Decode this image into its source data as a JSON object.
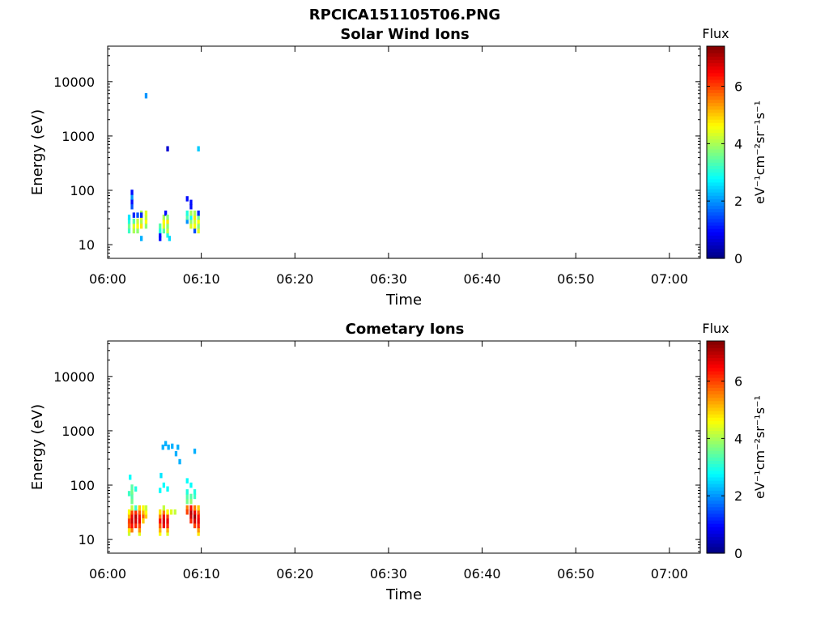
{
  "figure_title": "RPCICA151105T06.PNG",
  "colors": {
    "colormap": "jet",
    "axes": "#000000",
    "background": "#ffffff"
  },
  "chart_data": [
    {
      "type": "heatmap",
      "title": "Solar Wind Ions",
      "xlabel": "Time",
      "ylabel": "Energy (eV)",
      "x_ticks": [
        "06:00",
        "06:10",
        "06:20",
        "06:30",
        "06:40",
        "06:50",
        "07:00"
      ],
      "y_ticks": [
        "10",
        "100",
        "1000",
        "10000"
      ],
      "y_scale": "log",
      "xlim_minutes": [
        0,
        63.3
      ],
      "ylim": [
        5.6,
        45000
      ],
      "colorbar": {
        "title": "Flux",
        "label": "eV⁻¹cm⁻²sr⁻¹s⁻¹",
        "ticks": [
          "0",
          "2",
          "4",
          "6"
        ],
        "range": [
          0,
          7.4
        ]
      },
      "grid": false,
      "cells": [
        {
          "t": 2.3,
          "e": 18,
          "v": 3.2
        },
        {
          "t": 2.3,
          "e": 22,
          "v": 3.6
        },
        {
          "t": 2.3,
          "e": 27,
          "v": 3.0
        },
        {
          "t": 2.3,
          "e": 32,
          "v": 2.6
        },
        {
          "t": 2.6,
          "e": 50,
          "v": 1.5
        },
        {
          "t": 2.6,
          "e": 62,
          "v": 1.0
        },
        {
          "t": 2.6,
          "e": 75,
          "v": 2.0
        },
        {
          "t": 2.6,
          "e": 92,
          "v": 1.0
        },
        {
          "t": 2.8,
          "e": 18,
          "v": 4.0
        },
        {
          "t": 2.8,
          "e": 22,
          "v": 4.4
        },
        {
          "t": 2.8,
          "e": 27,
          "v": 3.4
        },
        {
          "t": 2.8,
          "e": 35,
          "v": 1.2
        },
        {
          "t": 3.2,
          "e": 18,
          "v": 3.8
        },
        {
          "t": 3.2,
          "e": 22,
          "v": 4.6
        },
        {
          "t": 3.2,
          "e": 27,
          "v": 4.2
        },
        {
          "t": 3.2,
          "e": 35,
          "v": 1.5
        },
        {
          "t": 3.6,
          "e": 22,
          "v": 4.8
        },
        {
          "t": 3.6,
          "e": 27,
          "v": 4.0
        },
        {
          "t": 3.6,
          "e": 32,
          "v": 4.4
        },
        {
          "t": 3.6,
          "e": 38,
          "v": 4.0
        },
        {
          "t": 3.6,
          "e": 13,
          "v": 2.2
        },
        {
          "t": 3.6,
          "e": 35,
          "v": 1.2
        },
        {
          "t": 4.1,
          "e": 22,
          "v": 3.8
        },
        {
          "t": 4.1,
          "e": 27,
          "v": 4.6
        },
        {
          "t": 4.1,
          "e": 32,
          "v": 4.2
        },
        {
          "t": 4.1,
          "e": 38,
          "v": 4.4
        },
        {
          "t": 4.1,
          "e": 5500,
          "v": 2.0
        },
        {
          "t": 5.6,
          "e": 13,
          "v": 1.0
        },
        {
          "t": 5.6,
          "e": 15,
          "v": 1.0
        },
        {
          "t": 5.6,
          "e": 18,
          "v": 3.0
        },
        {
          "t": 5.6,
          "e": 22,
          "v": 3.4
        },
        {
          "t": 6.0,
          "e": 18,
          "v": 3.4
        },
        {
          "t": 6.0,
          "e": 22,
          "v": 4.4
        },
        {
          "t": 6.0,
          "e": 27,
          "v": 4.6
        },
        {
          "t": 6.0,
          "e": 32,
          "v": 4.0
        },
        {
          "t": 6.2,
          "e": 38,
          "v": 1.0
        },
        {
          "t": 6.4,
          "e": 15,
          "v": 3.0
        },
        {
          "t": 6.4,
          "e": 18,
          "v": 4.2
        },
        {
          "t": 6.4,
          "e": 22,
          "v": 3.8
        },
        {
          "t": 6.4,
          "e": 27,
          "v": 4.8
        },
        {
          "t": 6.4,
          "e": 32,
          "v": 3.8
        },
        {
          "t": 6.4,
          "e": 580,
          "v": 0.6
        },
        {
          "t": 6.6,
          "e": 13,
          "v": 2.5
        },
        {
          "t": 8.5,
          "e": 27,
          "v": 2.0
        },
        {
          "t": 8.5,
          "e": 32,
          "v": 3.4
        },
        {
          "t": 8.5,
          "e": 38,
          "v": 3.0
        },
        {
          "t": 8.5,
          "e": 70,
          "v": 1.0
        },
        {
          "t": 8.9,
          "e": 22,
          "v": 4.4
        },
        {
          "t": 8.9,
          "e": 27,
          "v": 3.8
        },
        {
          "t": 8.9,
          "e": 32,
          "v": 2.8
        },
        {
          "t": 8.9,
          "e": 38,
          "v": 4.0
        },
        {
          "t": 8.9,
          "e": 50,
          "v": 1.0
        },
        {
          "t": 8.9,
          "e": 60,
          "v": 1.0
        },
        {
          "t": 9.3,
          "e": 18,
          "v": 1.5
        },
        {
          "t": 9.3,
          "e": 22,
          "v": 4.6
        },
        {
          "t": 9.3,
          "e": 27,
          "v": 4.2
        },
        {
          "t": 9.3,
          "e": 32,
          "v": 4.8
        },
        {
          "t": 9.3,
          "e": 38,
          "v": 4.0
        },
        {
          "t": 9.7,
          "e": 18,
          "v": 4.4
        },
        {
          "t": 9.7,
          "e": 22,
          "v": 3.8
        },
        {
          "t": 9.7,
          "e": 27,
          "v": 4.6
        },
        {
          "t": 9.7,
          "e": 32,
          "v": 3.6
        },
        {
          "t": 9.7,
          "e": 38,
          "v": 1.2
        },
        {
          "t": 9.7,
          "e": 580,
          "v": 2.4
        }
      ]
    },
    {
      "type": "heatmap",
      "title": "Cometary Ions",
      "xlabel": "Time",
      "ylabel": "Energy (eV)",
      "x_ticks": [
        "06:00",
        "06:10",
        "06:20",
        "06:30",
        "06:40",
        "06:50",
        "07:00"
      ],
      "y_ticks": [
        "10",
        "100",
        "1000",
        "10000"
      ],
      "y_scale": "log",
      "xlim_minutes": [
        0,
        63.3
      ],
      "ylim": [
        5.6,
        45000
      ],
      "colorbar": {
        "title": "Flux",
        "label": "eV⁻¹cm⁻²sr⁻¹s⁻¹",
        "ticks": [
          "0",
          "2",
          "4",
          "6"
        ],
        "range": [
          0,
          7.4
        ]
      },
      "grid": false,
      "cells": [
        {
          "t": 2.3,
          "e": 13,
          "v": 4.2
        },
        {
          "t": 2.3,
          "e": 15,
          "v": 4.8
        },
        {
          "t": 2.3,
          "e": 18,
          "v": 5.8
        },
        {
          "t": 2.3,
          "e": 22,
          "v": 6.0
        },
        {
          "t": 2.3,
          "e": 27,
          "v": 5.2
        },
        {
          "t": 2.3,
          "e": 32,
          "v": 4.6
        },
        {
          "t": 2.3,
          "e": 70,
          "v": 3.2
        },
        {
          "t": 2.4,
          "e": 140,
          "v": 2.8
        },
        {
          "t": 2.6,
          "e": 15,
          "v": 5.6
        },
        {
          "t": 2.6,
          "e": 18,
          "v": 6.4
        },
        {
          "t": 2.6,
          "e": 22,
          "v": 6.8
        },
        {
          "t": 2.6,
          "e": 27,
          "v": 6.6
        },
        {
          "t": 2.6,
          "e": 32,
          "v": 6.0
        },
        {
          "t": 2.6,
          "e": 38,
          "v": 4.2
        },
        {
          "t": 2.6,
          "e": 50,
          "v": 3.6
        },
        {
          "t": 2.6,
          "e": 62,
          "v": 3.4
        },
        {
          "t": 2.6,
          "e": 75,
          "v": 3.6
        },
        {
          "t": 2.6,
          "e": 92,
          "v": 3.4
        },
        {
          "t": 3.0,
          "e": 18,
          "v": 6.2
        },
        {
          "t": 3.0,
          "e": 22,
          "v": 6.8
        },
        {
          "t": 3.0,
          "e": 27,
          "v": 7.0
        },
        {
          "t": 3.0,
          "e": 32,
          "v": 6.2
        },
        {
          "t": 3.0,
          "e": 38,
          "v": 3.2
        },
        {
          "t": 3.0,
          "e": 85,
          "v": 3.0
        },
        {
          "t": 3.4,
          "e": 13,
          "v": 4.4
        },
        {
          "t": 3.4,
          "e": 15,
          "v": 5.4
        },
        {
          "t": 3.4,
          "e": 18,
          "v": 6.0
        },
        {
          "t": 3.4,
          "e": 22,
          "v": 6.6
        },
        {
          "t": 3.4,
          "e": 27,
          "v": 6.4
        },
        {
          "t": 3.4,
          "e": 32,
          "v": 5.8
        },
        {
          "t": 3.4,
          "e": 38,
          "v": 5.0
        },
        {
          "t": 3.8,
          "e": 27,
          "v": 5.8
        },
        {
          "t": 3.8,
          "e": 32,
          "v": 5.2
        },
        {
          "t": 3.8,
          "e": 38,
          "v": 4.6
        },
        {
          "t": 3.8,
          "e": 22,
          "v": 5.0
        },
        {
          "t": 4.1,
          "e": 27,
          "v": 5.0
        },
        {
          "t": 4.1,
          "e": 32,
          "v": 4.6
        },
        {
          "t": 4.1,
          "e": 38,
          "v": 4.2
        },
        {
          "t": 5.6,
          "e": 13,
          "v": 4.6
        },
        {
          "t": 5.6,
          "e": 15,
          "v": 5.2
        },
        {
          "t": 5.6,
          "e": 18,
          "v": 5.8
        },
        {
          "t": 5.6,
          "e": 22,
          "v": 6.4
        },
        {
          "t": 5.6,
          "e": 27,
          "v": 5.6
        },
        {
          "t": 5.6,
          "e": 32,
          "v": 4.8
        },
        {
          "t": 5.6,
          "e": 80,
          "v": 2.8
        },
        {
          "t": 5.7,
          "e": 150,
          "v": 2.6
        },
        {
          "t": 5.9,
          "e": 500,
          "v": 2.2
        },
        {
          "t": 6.0,
          "e": 18,
          "v": 6.6
        },
        {
          "t": 6.0,
          "e": 22,
          "v": 6.8
        },
        {
          "t": 6.0,
          "e": 27,
          "v": 6.6
        },
        {
          "t": 6.0,
          "e": 32,
          "v": 5.6
        },
        {
          "t": 6.0,
          "e": 38,
          "v": 4.2
        },
        {
          "t": 6.0,
          "e": 100,
          "v": 2.8
        },
        {
          "t": 6.2,
          "e": 580,
          "v": 2.2
        },
        {
          "t": 6.4,
          "e": 13,
          "v": 4.4
        },
        {
          "t": 6.4,
          "e": 15,
          "v": 5.2
        },
        {
          "t": 6.4,
          "e": 18,
          "v": 6.2
        },
        {
          "t": 6.4,
          "e": 22,
          "v": 6.6
        },
        {
          "t": 6.4,
          "e": 27,
          "v": 6.0
        },
        {
          "t": 6.4,
          "e": 32,
          "v": 4.6
        },
        {
          "t": 6.4,
          "e": 85,
          "v": 2.8
        },
        {
          "t": 6.5,
          "e": 500,
          "v": 2.2
        },
        {
          "t": 6.8,
          "e": 32,
          "v": 4.4
        },
        {
          "t": 6.9,
          "e": 520,
          "v": 2.2
        },
        {
          "t": 7.2,
          "e": 32,
          "v": 4.2
        },
        {
          "t": 7.3,
          "e": 380,
          "v": 2.2
        },
        {
          "t": 7.5,
          "e": 500,
          "v": 2.2
        },
        {
          "t": 7.7,
          "e": 270,
          "v": 2.2
        },
        {
          "t": 8.5,
          "e": 38,
          "v": 5.6
        },
        {
          "t": 8.5,
          "e": 32,
          "v": 6.0
        },
        {
          "t": 8.5,
          "e": 50,
          "v": 3.6
        },
        {
          "t": 8.5,
          "e": 62,
          "v": 3.4
        },
        {
          "t": 8.5,
          "e": 75,
          "v": 3.0
        },
        {
          "t": 8.5,
          "e": 120,
          "v": 2.8
        },
        {
          "t": 8.9,
          "e": 22,
          "v": 6.2
        },
        {
          "t": 8.9,
          "e": 27,
          "v": 6.8
        },
        {
          "t": 8.9,
          "e": 32,
          "v": 7.0
        },
        {
          "t": 8.9,
          "e": 38,
          "v": 6.4
        },
        {
          "t": 8.9,
          "e": 50,
          "v": 3.8
        },
        {
          "t": 8.9,
          "e": 62,
          "v": 3.4
        },
        {
          "t": 8.9,
          "e": 100,
          "v": 2.8
        },
        {
          "t": 9.3,
          "e": 18,
          "v": 6.0
        },
        {
          "t": 9.3,
          "e": 22,
          "v": 6.8
        },
        {
          "t": 9.3,
          "e": 27,
          "v": 7.2
        },
        {
          "t": 9.3,
          "e": 32,
          "v": 6.6
        },
        {
          "t": 9.3,
          "e": 38,
          "v": 5.6
        },
        {
          "t": 9.3,
          "e": 62,
          "v": 3.2
        },
        {
          "t": 9.3,
          "e": 75,
          "v": 3.0
        },
        {
          "t": 9.3,
          "e": 420,
          "v": 2.2
        },
        {
          "t": 9.7,
          "e": 13,
          "v": 4.8
        },
        {
          "t": 9.7,
          "e": 15,
          "v": 5.4
        },
        {
          "t": 9.7,
          "e": 18,
          "v": 6.2
        },
        {
          "t": 9.7,
          "e": 22,
          "v": 6.6
        },
        {
          "t": 9.7,
          "e": 27,
          "v": 6.4
        },
        {
          "t": 9.7,
          "e": 32,
          "v": 5.8
        },
        {
          "t": 9.7,
          "e": 38,
          "v": 5.0
        }
      ]
    }
  ]
}
